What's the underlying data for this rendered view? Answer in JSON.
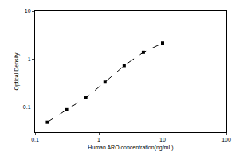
{
  "chart_data": {
    "type": "line",
    "x_label": "Human ARO concentration(ng/mL)",
    "y_label": "Optical Density",
    "x": [
      0.156,
      0.3125,
      0.625,
      1.25,
      2.5,
      5,
      10
    ],
    "values": [
      0.048,
      0.088,
      0.155,
      0.33,
      0.73,
      1.38,
      2.15
    ],
    "color": "#000000",
    "marker": "square",
    "line_style": "dashed",
    "log": true,
    "grid": false,
    "xlim": [
      0.1,
      100
    ],
    "xticks": [
      0.1,
      1,
      10,
      100
    ],
    "ylim": [
      0.03,
      10
    ],
    "yticks": [
      0.1,
      1,
      10
    ]
  }
}
